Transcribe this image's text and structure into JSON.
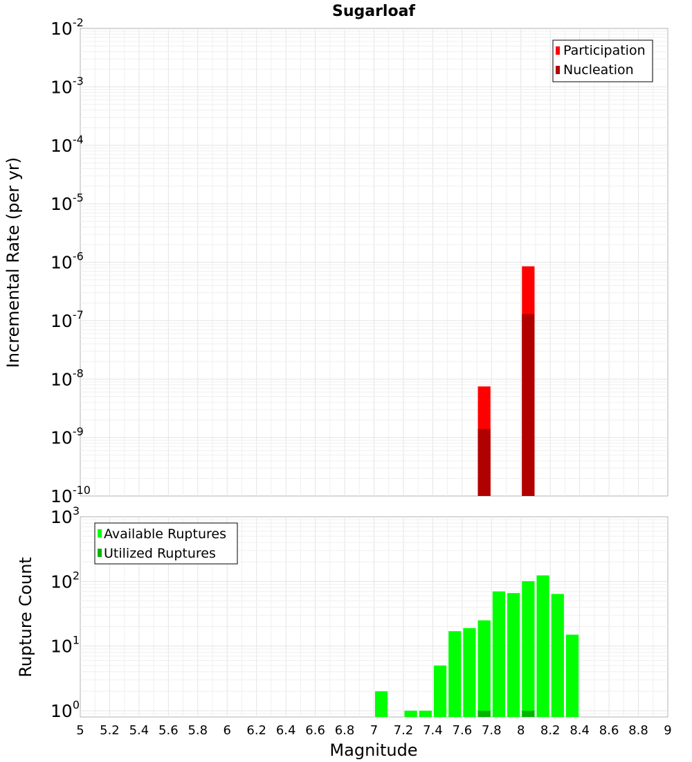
{
  "title": "Sugarloaf",
  "chart_data": [
    {
      "type": "bar",
      "panel": "top",
      "ylabel": "Incremental Rate (per yr)",
      "yscale": "log",
      "ylim": [
        1e-10,
        0.01
      ],
      "xlim": [
        5,
        9
      ],
      "bin_width": 0.1,
      "y_tick_exponents": [
        "-10",
        "-9",
        "-8",
        "-7",
        "-6",
        "-5",
        "-4",
        "-3",
        "-2"
      ],
      "legend": {
        "placement": "top-right",
        "entries": [
          {
            "label": "Participation",
            "color": "#ff0000"
          },
          {
            "label": "Nucleation",
            "color": "#b00000"
          }
        ]
      },
      "series": [
        {
          "name": "Participation",
          "color": "#ff0000",
          "x": [
            7.75,
            8.05
          ],
          "values": [
            7.5e-09,
            8.5e-07
          ]
        },
        {
          "name": "Nucleation",
          "color": "#b00000",
          "x": [
            7.75,
            8.05
          ],
          "values": [
            1.4e-09,
            1.3e-07
          ]
        }
      ]
    },
    {
      "type": "bar",
      "panel": "bottom",
      "ylabel": "Rupture Count",
      "xlabel": "Magnitude",
      "yscale": "log",
      "ylim": [
        0.8,
        1000
      ],
      "xlim": [
        5,
        9
      ],
      "bin_width": 0.1,
      "y_tick_exponents": [
        "0",
        "1",
        "2",
        "3"
      ],
      "x_ticks": [
        "5",
        "5.2",
        "5.4",
        "5.6",
        "5.8",
        "6",
        "6.2",
        "6.4",
        "6.6",
        "6.8",
        "7",
        "7.2",
        "7.4",
        "7.6",
        "7.8",
        "8",
        "8.2",
        "8.4",
        "8.6",
        "8.8",
        "9"
      ],
      "legend": {
        "placement": "top-left",
        "entries": [
          {
            "label": "Available Ruptures",
            "color": "#00ff00"
          },
          {
            "label": "Utilized Ruptures",
            "color": "#00b400"
          }
        ]
      },
      "series": [
        {
          "name": "Available Ruptures",
          "color": "#00ff00",
          "x": [
            7.05,
            7.25,
            7.35,
            7.45,
            7.55,
            7.65,
            7.75,
            7.85,
            7.95,
            8.05,
            8.15,
            8.25,
            8.35
          ],
          "values": [
            2,
            1,
            1,
            5,
            17,
            19,
            25,
            70,
            66,
            101,
            124,
            64,
            15
          ]
        },
        {
          "name": "Utilized Ruptures",
          "color": "#00b400",
          "x": [
            7.75,
            8.05
          ],
          "values": [
            1,
            1
          ]
        }
      ]
    }
  ]
}
